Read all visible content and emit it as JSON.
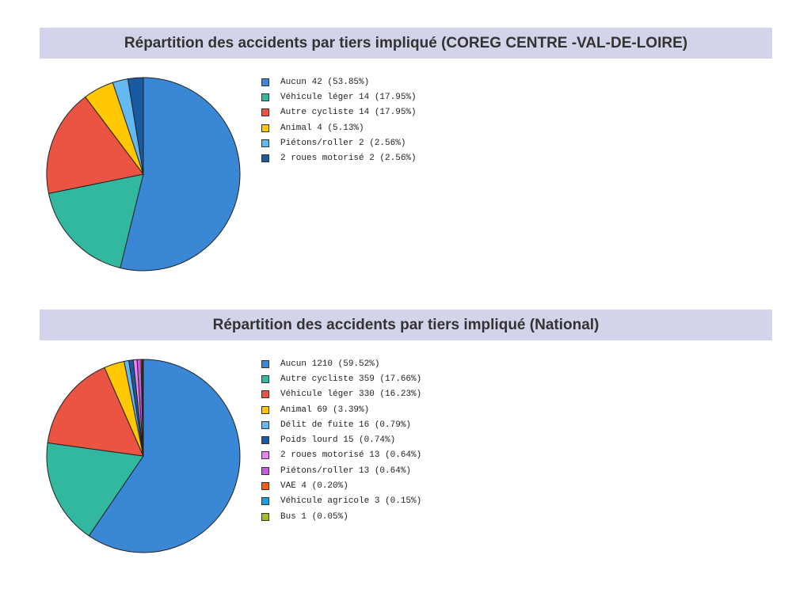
{
  "chart_data": [
    {
      "type": "pie",
      "title": "Répartition des accidents par tiers impliqué (COREG CENTRE -VAL-DE-LOIRE)",
      "slices": [
        {
          "label": "Aucun",
          "value": 42,
          "percent": "53.85%",
          "color": "#3a87d6"
        },
        {
          "label": "Véhicule léger",
          "value": 14,
          "percent": "17.95%",
          "color": "#33b8a0"
        },
        {
          "label": "Autre cycliste",
          "value": 14,
          "percent": "17.95%",
          "color": "#eb5343"
        },
        {
          "label": "Animal",
          "value": 4,
          "percent": "5.13%",
          "color": "#ffc800"
        },
        {
          "label": "Piétons/roller",
          "value": 2,
          "percent": "2.56%",
          "color": "#63b9f2"
        },
        {
          "label": "2 roues motorisé",
          "value": 2,
          "percent": "2.56%",
          "color": "#1a5aa0"
        }
      ]
    },
    {
      "type": "pie",
      "title": "Répartition des accidents par tiers impliqué (National)",
      "slices": [
        {
          "label": "Aucun",
          "value": 1210,
          "percent": "59.52%",
          "color": "#3a87d6"
        },
        {
          "label": "Autre cycliste",
          "value": 359,
          "percent": "17.66%",
          "color": "#33b8a0"
        },
        {
          "label": "Véhicule léger",
          "value": 330,
          "percent": "16.23%",
          "color": "#eb5343"
        },
        {
          "label": "Animal",
          "value": 69,
          "percent": "3.39%",
          "color": "#ffc800"
        },
        {
          "label": "Délit de fuite",
          "value": 16,
          "percent": "0.79%",
          "color": "#63b9f2"
        },
        {
          "label": "Poids lourd",
          "value": 15,
          "percent": "0.74%",
          "color": "#1a5aa0"
        },
        {
          "label": "2 roues motorisé",
          "value": 13,
          "percent": "0.64%",
          "color": "#ee82ee"
        },
        {
          "label": "Piétons/roller",
          "value": 13,
          "percent": "0.64%",
          "color": "#c060e0"
        },
        {
          "label": "VAE",
          "value": 4,
          "percent": "0.20%",
          "color": "#f06010"
        },
        {
          "label": "Véhicule agricole",
          "value": 3,
          "percent": "0.15%",
          "color": "#1aa3e0"
        },
        {
          "label": "Bus",
          "value": 1,
          "percent": "0.05%",
          "color": "#a0c020"
        }
      ]
    }
  ]
}
